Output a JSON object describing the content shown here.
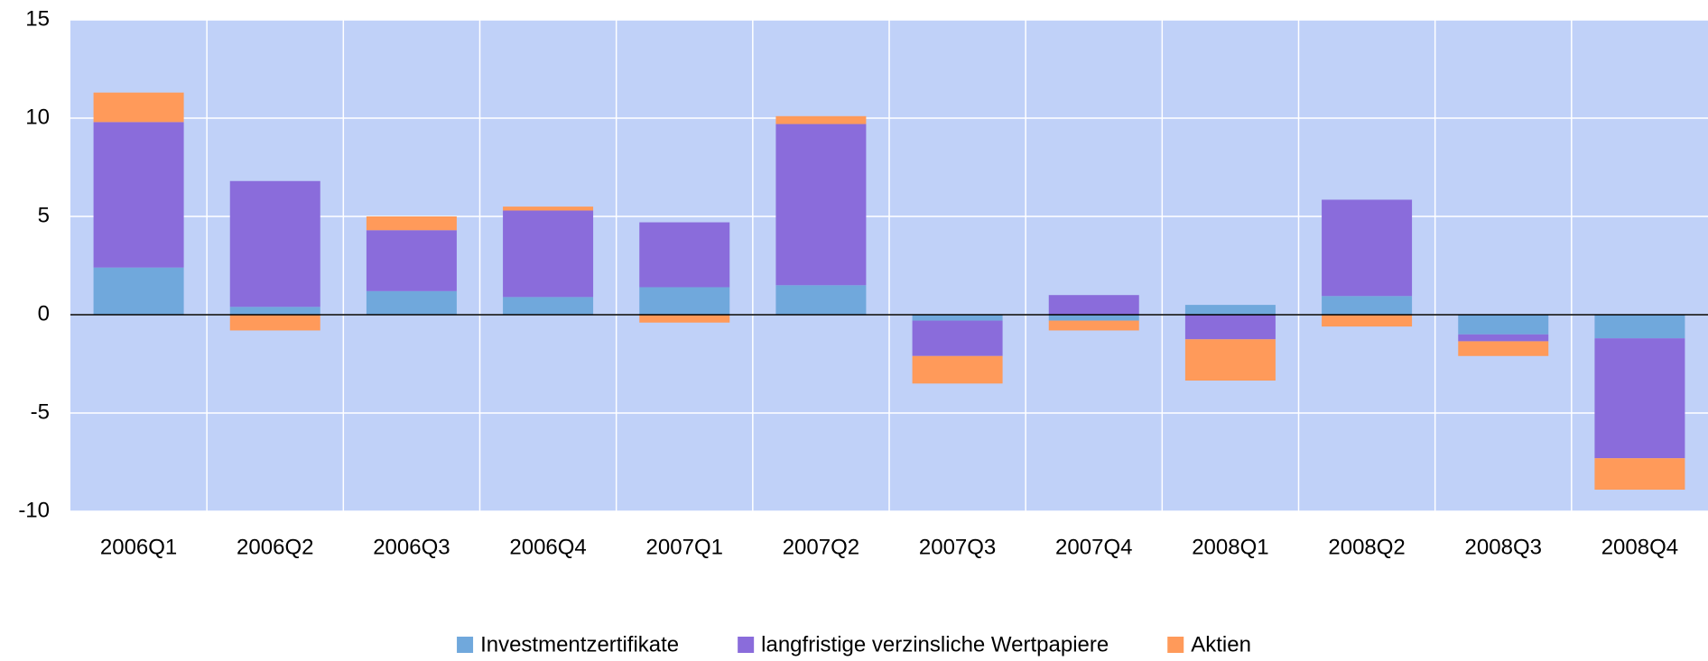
{
  "chart_data": {
    "type": "stacked_bar",
    "categories": [
      "2006Q1",
      "2006Q2",
      "2006Q3",
      "2006Q4",
      "2007Q1",
      "2007Q2",
      "2007Q3",
      "2007Q4",
      "2008Q1",
      "2008Q2",
      "2008Q3",
      "2008Q4"
    ],
    "series": [
      {
        "name": "Investmentzertifikate",
        "color": "#70a8dc",
        "values": [
          2.4,
          0.4,
          1.2,
          0.9,
          1.4,
          1.5,
          -0.3,
          -0.3,
          0.5,
          0.95,
          -1.0,
          -1.2
        ]
      },
      {
        "name": "langfristige verzinsliche Wertpapiere",
        "color": "#8a6cdb",
        "values": [
          7.4,
          6.4,
          3.1,
          4.4,
          3.3,
          8.2,
          -1.8,
          1.0,
          -1.25,
          4.9,
          -0.35,
          -6.1
        ]
      },
      {
        "name": "Aktien",
        "color": "#ff9a5a",
        "values": [
          1.5,
          -0.8,
          0.7,
          0.2,
          -0.4,
          0.4,
          -1.4,
          -0.5,
          -2.1,
          -0.6,
          -0.75,
          -1.6
        ]
      }
    ],
    "ylim": [
      -10,
      15
    ],
    "yticks": [
      -10,
      -5,
      0,
      5,
      10,
      15
    ],
    "grid": true,
    "legend": "bottom"
  }
}
